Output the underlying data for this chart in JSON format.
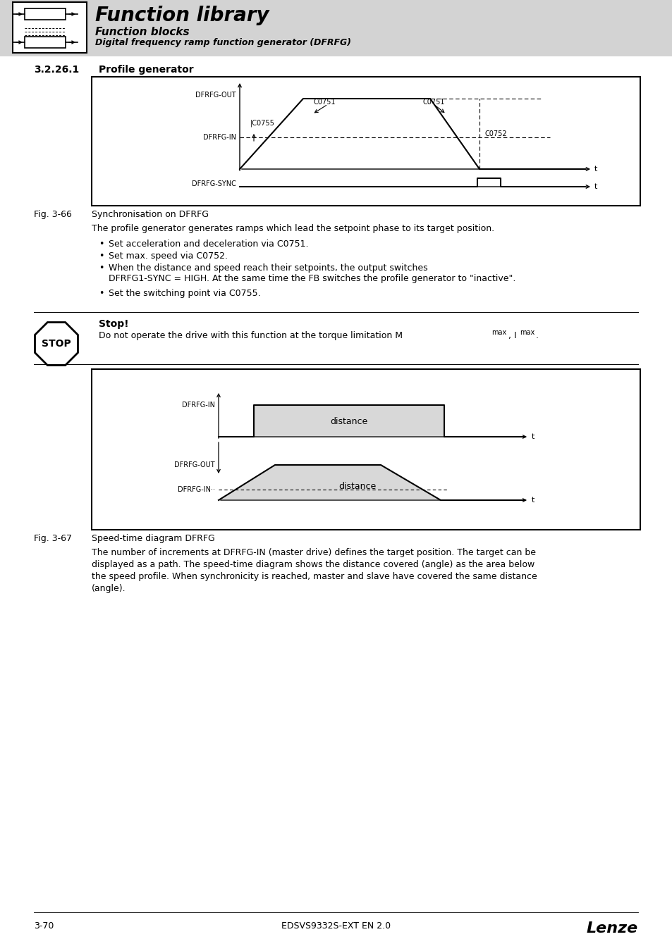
{
  "page_bg": "#ffffff",
  "header_bg": "#d8d8d8",
  "header_title": "Function library",
  "header_sub1": "Function blocks",
  "header_sub2": "Digital frequency ramp function generator (DFRFG)",
  "section_num": "3.2.26.1",
  "section_name": "Profile generator",
  "fig66_label": "Fig. 3-66",
  "fig66_caption": "Synchronisation on DFRFG",
  "fig67_label": "Fig. 3-67",
  "fig67_caption": "Speed-time diagram DFRFG",
  "stop_title": "Stop!",
  "bullet1": "Set acceleration and deceleration via C0751.",
  "bullet2": "Set max. speed via C0752.",
  "bullet3_line1": "When the distance and speed reach their setpoints, the output switches",
  "bullet3_line2": "DFRFG1-SYNC = HIGH. At the same time the FB switches the profile generator to \"inactive\".",
  "bullet4": "Set the switching point via C0755.",
  "body_text": "The profile generator generates ramps which lead the setpoint phase to its target position.",
  "fig67_body": "The number of increments at DFRFG-IN (master drive) defines the target position. The target can be\ndisplayed as a path. The speed-time diagram shows the distance covered (angle) as the area below\nthe speed profile. When synchronicity is reached, master and slave have covered the same distance\n(angle).",
  "footer_left": "3-70",
  "footer_mid": "EDSVS9332S-EXT EN 2.0",
  "footer_right": "Lenze"
}
